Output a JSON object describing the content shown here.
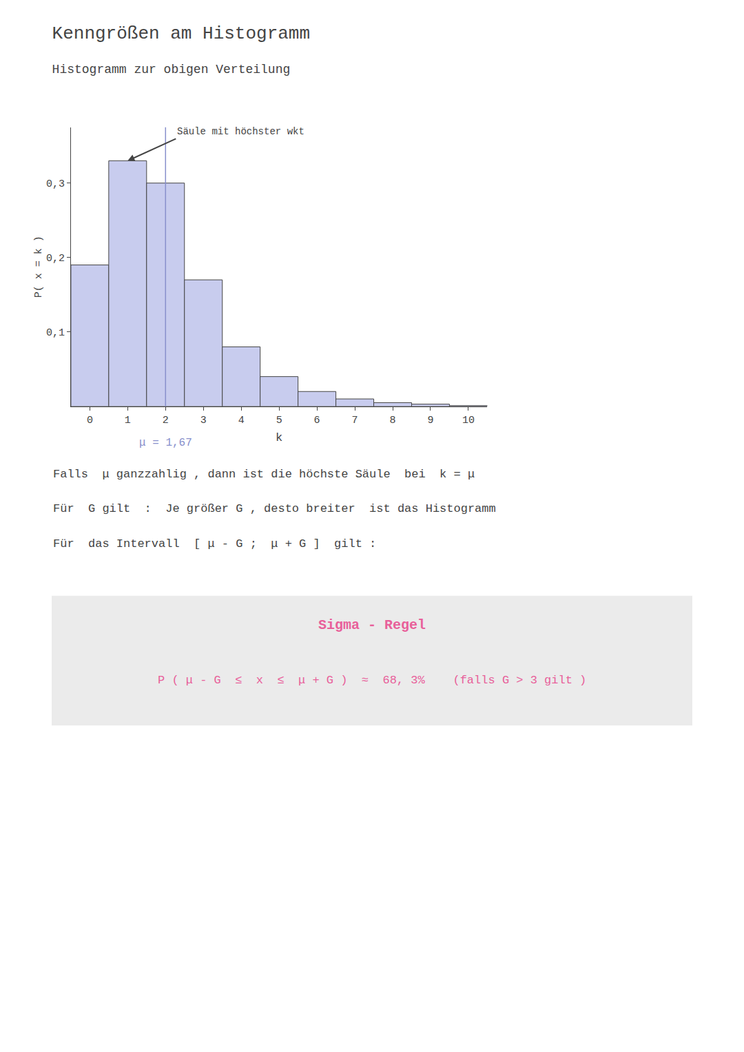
{
  "chart_data": {
    "type": "bar",
    "title": "Kenngrößen am Histogramm",
    "subtitle": "Histogramm zur obigen Verteilung",
    "x_label": "k",
    "y_label": "P( x = k )",
    "categories": [
      "0",
      "1",
      "2",
      "3",
      "4",
      "5",
      "6",
      "7",
      "8",
      "9",
      "10"
    ],
    "values": [
      0.19,
      0.33,
      0.3,
      0.17,
      0.08,
      0.04,
      0.02,
      0.01,
      0.005,
      0.003,
      0.001
    ],
    "color": "#c8ccee",
    "ylim": [
      0,
      0.375
    ],
    "yticks": [
      {
        "value": 0.1,
        "label": "0,1"
      },
      {
        "value": 0.2,
        "label": "0,2"
      },
      {
        "value": 0.3,
        "label": "0,3"
      }
    ],
    "grid": false,
    "annotations": [
      {
        "text": "Säule mit höchster wkt",
        "category": "1"
      },
      {
        "text": "μ = 1,67",
        "category": "2",
        "color": "#8890cc"
      }
    ],
    "body": [
      "Falls  μ ganzzahlig , dann ist die höchste Säule  bei  k = μ",
      "Für  G gilt  :  Je größer G , desto breiter  ist das Histogramm",
      "Für  das Intervall  [ μ - G ;  μ + G ]  gilt :"
    ],
    "box": {
      "title": "Sigma - Regel",
      "text": "P ( μ - G  ≤  x  ≤  μ + G )  ≈  68, 3%    (falls G > 3 gilt )",
      "color": "#e8609a",
      "background": "#ebebeb"
    }
  }
}
